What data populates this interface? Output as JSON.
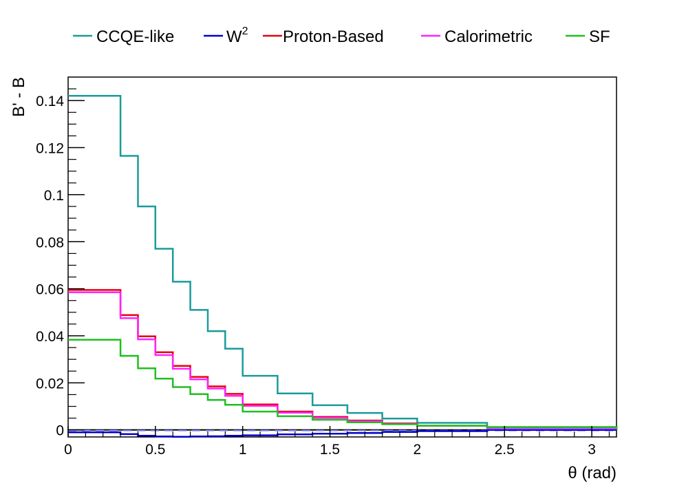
{
  "chart_data": {
    "type": "line",
    "step": true,
    "xlabel": "θ (rad)",
    "ylabel": "B' - B",
    "xlim": [
      0,
      3.1416
    ],
    "ylim": [
      -0.003,
      0.15
    ],
    "x_ticks": [
      0,
      0.5,
      1,
      1.5,
      2,
      2.5,
      3
    ],
    "x_tick_labels": [
      "0",
      "0.5",
      "1",
      "1.5",
      "2",
      "2.5",
      "3"
    ],
    "y_ticks": [
      0,
      0.02,
      0.04,
      0.06,
      0.08,
      0.1,
      0.12,
      0.14
    ],
    "y_tick_labels": [
      "0",
      "0.02",
      "0.04",
      "0.06",
      "0.08",
      "0.1",
      "0.12",
      "0.14"
    ],
    "grid": false,
    "legend_placement": "top",
    "bin_edges": [
      0,
      0.3,
      0.4,
      0.5,
      0.6,
      0.7,
      0.8,
      0.9,
      1.0,
      1.2,
      1.4,
      1.6,
      1.8,
      2.0,
      2.4,
      3.1416
    ],
    "series": [
      {
        "name": "CCQE-like",
        "color": "#1a9b9b",
        "values": [
          0.142,
          0.1165,
          0.095,
          0.077,
          0.063,
          0.051,
          0.042,
          0.0345,
          0.023,
          0.0155,
          0.0105,
          0.0072,
          0.0048,
          0.003,
          0.0012,
          0.0002
        ]
      },
      {
        "name": "W",
        "name_sup": "2",
        "color": "#0000d0",
        "values": [
          -0.001,
          -0.0018,
          -0.0025,
          -0.0028,
          -0.0029,
          -0.0028,
          -0.0027,
          -0.0025,
          -0.0023,
          -0.0019,
          -0.0016,
          -0.0013,
          -0.0009,
          -0.0005,
          0.0,
          0.0
        ]
      },
      {
        "name": "Proton-Based",
        "color": "#e8000b",
        "values": [
          0.0595,
          0.0488,
          0.0398,
          0.033,
          0.0272,
          0.0225,
          0.0185,
          0.0153,
          0.0108,
          0.0078,
          0.0055,
          0.004,
          0.0028,
          0.0018,
          0.001,
          0.0002
        ]
      },
      {
        "name": "Calorimetric",
        "color": "#ff22ff",
        "values": [
          0.0585,
          0.0475,
          0.0385,
          0.0318,
          0.026,
          0.0215,
          0.0176,
          0.0145,
          0.0102,
          0.0073,
          0.0051,
          0.0037,
          0.0026,
          0.0017,
          0.0009,
          0.0002
        ]
      },
      {
        "name": "SF",
        "color": "#1fbf1f",
        "values": [
          0.0383,
          0.0315,
          0.0262,
          0.0218,
          0.0182,
          0.0152,
          0.0127,
          0.0107,
          0.0078,
          0.0058,
          0.0043,
          0.0032,
          0.0024,
          0.0018,
          0.0012,
          0.0003
        ]
      }
    ],
    "reference_lines": [
      {
        "y": 0.0,
        "color": "#000000",
        "style": "solid"
      },
      {
        "y": -0.0003,
        "color": "#8888ff",
        "style": "dashed"
      }
    ]
  }
}
